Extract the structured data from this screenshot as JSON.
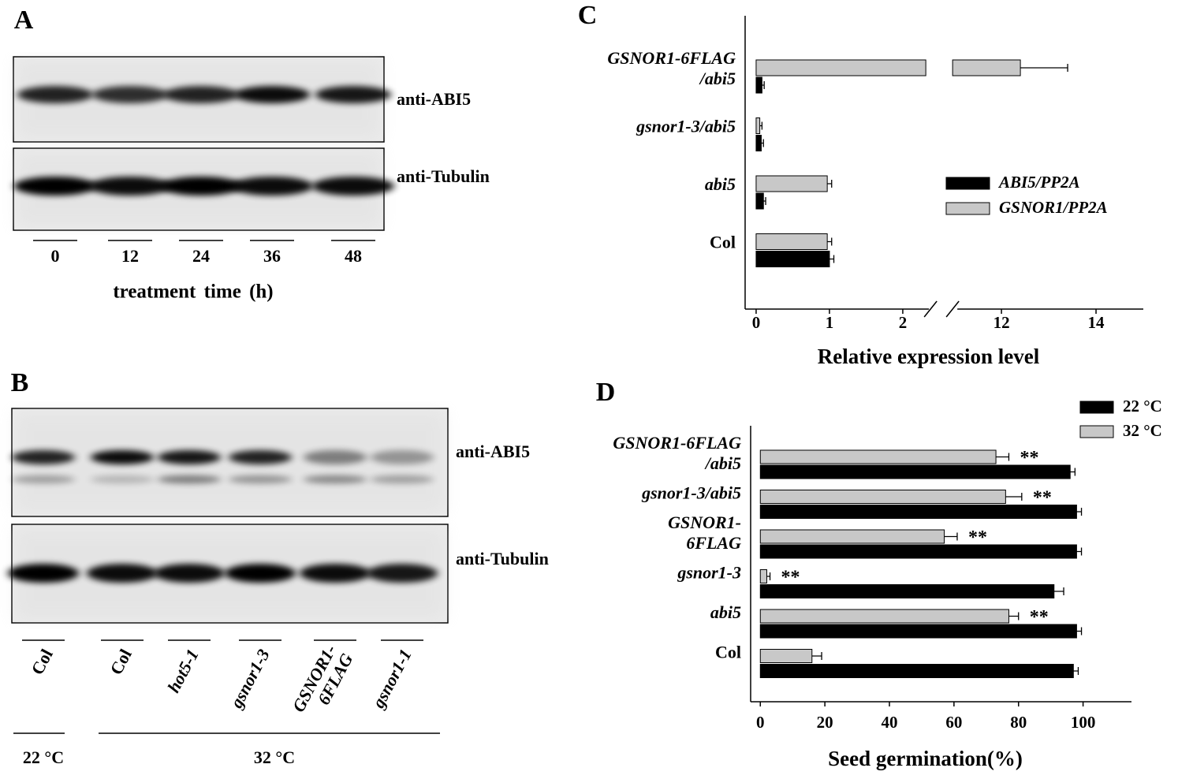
{
  "panel_labels": [
    "A",
    "B",
    "C",
    "D"
  ],
  "blot_a": {
    "bands": [
      "anti-ABI5",
      "anti-Tubulin"
    ],
    "lanes": [
      "0",
      "12",
      "24",
      "36",
      "48"
    ],
    "xlabel": "treatment time (h)"
  },
  "blot_b": {
    "bands": [
      "anti-ABI5",
      "anti-Tubulin"
    ],
    "lanes": [
      "Col",
      "Col",
      "hot5-1",
      "gsnor1-3",
      "GSNOR1-\n6FLAG",
      "gsnor1-1"
    ],
    "lanes_italic": [
      false,
      false,
      true,
      true,
      true,
      true
    ],
    "groups": [
      "22 °C",
      "32 °C"
    ]
  },
  "chart_data": [
    {
      "type": "hbar",
      "xlabel": "Relative expression level",
      "categories": [
        "GSNOR1-6FLAG\n/abi5",
        "gsnor1-3/abi5",
        "abi5",
        "Col"
      ],
      "categories_italic": [
        true,
        true,
        true,
        false
      ],
      "series": [
        {
          "name": "ABI5/PP2A",
          "color": "#000000",
          "values": [
            0.08,
            0.07,
            0.1,
            1.0
          ],
          "errors": [
            0.03,
            0.03,
            0.03,
            0.06
          ]
        },
        {
          "name": "GSNOR1/PP2A",
          "color": "#c8c8c8",
          "values": [
            12.4,
            0.05,
            0.97,
            0.97
          ],
          "errors": [
            1.0,
            0.03,
            0.06,
            0.06
          ]
        }
      ],
      "xlim": [
        -0.15,
        15
      ],
      "xbreak": [
        2.4,
        11
      ],
      "xticks": [
        0,
        1,
        2,
        12,
        14
      ]
    },
    {
      "type": "hbar",
      "xlabel": "Seed germination(%)",
      "categories": [
        "GSNOR1-6FLAG\n/abi5",
        "gsnor1-3/abi5",
        "GSNOR1-\n6FLAG",
        "gsnor1-3",
        "abi5",
        "Col"
      ],
      "categories_italic": [
        true,
        true,
        true,
        true,
        true,
        false
      ],
      "series": [
        {
          "name": "22 °C",
          "color": "#000000",
          "values": [
            96,
            98,
            98,
            91,
            98,
            97
          ],
          "errors": [
            1.5,
            1.5,
            1.5,
            3,
            1.5,
            1.5
          ]
        },
        {
          "name": "32 °C",
          "color": "#c8c8c8",
          "values": [
            73,
            76,
            57,
            2,
            77,
            16
          ],
          "errors": [
            4,
            5,
            4,
            1,
            3,
            3
          ]
        }
      ],
      "annotations": [
        "**",
        "**",
        "**",
        "**",
        "**",
        null
      ],
      "xlim": [
        -3,
        115
      ],
      "xticks": [
        0,
        20,
        40,
        60,
        80,
        100
      ]
    }
  ]
}
